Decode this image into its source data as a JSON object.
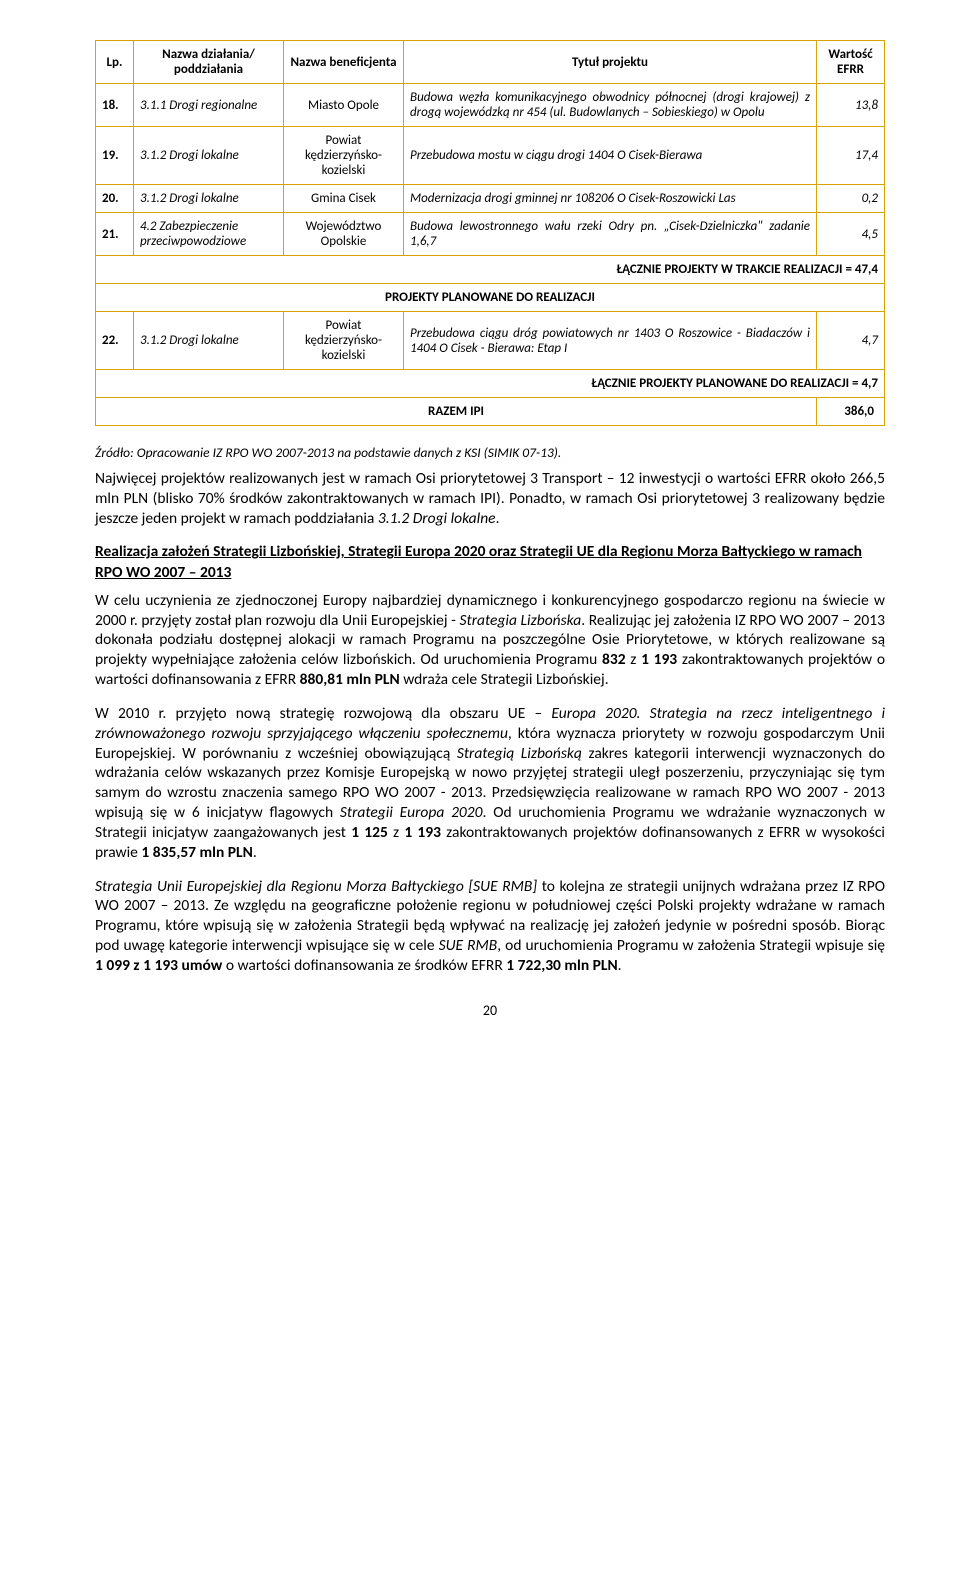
{
  "table": {
    "headers": {
      "lp": "Lp.",
      "dzialanie": "Nazwa działania/ poddziałania",
      "beneficjent": "Nazwa beneficjenta",
      "tytul": "Tytuł projektu",
      "wartosc": "Wartość EFRR"
    },
    "rows": [
      {
        "lp": "18.",
        "dzialanie_prefix": "3.1.1 Drogi regionalne",
        "beneficjent": "Miasto Opole",
        "tytul": "Budowa węzła komunikacyjnego obwodnicy północnej (drogi krajowej) z drogą wojewódzką nr 454 (ul. Budowlanych – Sobieskiego) w Opolu",
        "wartosc": "13,8"
      },
      {
        "lp": "19.",
        "dzialanie_prefix": "3.1.2 Drogi lokalne",
        "beneficjent": "Powiat kędzierzyńsko-kozielski",
        "tytul": "Przebudowa mostu w ciągu drogi 1404 O Cisek-Bierawa",
        "wartosc": "17,4"
      },
      {
        "lp": "20.",
        "dzialanie_prefix": "3.1.2 Drogi lokalne",
        "beneficjent": "Gmina Cisek",
        "tytul": "Modernizacja drogi gminnej nr 108206 O Cisek-Roszowicki Las",
        "wartosc": "0,2"
      },
      {
        "lp": "21.",
        "dzialanie_prefix": "4.2 Zabezpieczenie przeciwpowodziowe",
        "beneficjent": "Województwo Opolskie",
        "tytul": "Budowa lewostronnego wału rzeki Odry pn. „Cisek-Dzielniczka\" zadanie 1,6,7",
        "wartosc": "4,5"
      }
    ],
    "sum_trakcie": "ŁĄCZNIE PROJEKTY W TRAKCIE REALIZACJI = 47,4",
    "section_planowane": "PROJEKTY PLANOWANE DO REALIZACJI",
    "rows2": [
      {
        "lp": "22.",
        "dzialanie_prefix": "3.1.2 Drogi lokalne",
        "beneficjent": "Powiat kędzierzyńsko-kozielski",
        "tytul": "Przebudowa ciągu dróg powiatowych nr 1403 O Roszowice - Biadaczów i 1404 O Cisek - Bierawa: Etap I",
        "wartosc": "4,7"
      }
    ],
    "sum_planowane": "ŁĄCZNIE PROJEKTY PLANOWANE DO REALIZACJI = 4,7",
    "razem_label": "RAZEM IPI",
    "razem_value": "386,0"
  },
  "source": "Źródło: Opracowanie IZ RPO WO 2007-2013 na podstawie danych z KSI (SIMIK 07-13).",
  "para1_a": "Najwięcej projektów realizowanych jest w ramach Osi priorytetowej 3 Transport – 12 inwestycji o wartości EFRR około 266,5 mln PLN (blisko 70% środków zakontraktowanych w ramach IPI). Ponadto, w ramach Osi priorytetowej 3 realizowany będzie jeszcze jeden projekt w ramach poddziałania ",
  "para1_b": "3.1.2 Drogi lokalne",
  "para1_c": ".",
  "heading": "Realizacja założeń Strategii Lizbońskiej, Strategii Europa 2020 oraz Strategii UE dla Regionu Morza Bałtyckiego w ramach RPO WO 2007 – 2013",
  "para2_a": "W celu uczynienia ze zjednoczonej Europy najbardziej dynamicznego i konkurencyjnego gospodarczo regionu na świecie w 2000 r. przyjęty został plan rozwoju dla Unii Europejskiej - ",
  "para2_b": "Strategia Lizbońska",
  "para2_c": ". Realizując jej założenia IZ RPO WO 2007 – 2013 dokonała podziału dostępnej alokacji w ramach Programu na poszczególne Osie Priorytetowe, w których realizowane są projekty wypełniające założenia celów lizbońskich. Od uruchomienia Programu ",
  "para2_d": "832",
  "para2_e": " z ",
  "para2_f": "1 193",
  "para2_g": " zakontraktowanych projektów o wartości dofinansowania z EFRR ",
  "para2_h": "880,81 mln PLN",
  "para2_i": " wdraża cele Strategii Lizbońskiej.",
  "para3_a": "W 2010 r. przyjęto nową strategię rozwojową dla obszaru UE – ",
  "para3_b": "Europa 2020. Strategia na rzecz inteligentnego i zrównoważonego rozwoju sprzyjającego włączeniu społecznemu",
  "para3_c": ", która wyznacza priorytety w rozwoju gospodarczym Unii Europejskiej. W porównaniu z wcześniej obowiązującą ",
  "para3_d": "Strategią Lizbońską",
  "para3_e": " zakres kategorii interwencji wyznaczonych do wdrażania celów wskazanych przez Komisje Europejską w nowo przyjętej strategii uległ poszerzeniu, przyczyniając się tym samym do wzrostu znaczenia samego RPO WO 2007 - 2013. Przedsięwzięcia realizowane w ramach RPO WO 2007 - 2013 wpisują się w 6 inicjatyw flagowych ",
  "para3_f": "Strategii Europa 2020",
  "para3_g": ". Od uruchomienia Programu we wdrażanie wyznaczonych w Strategii inicjatyw zaangażowanych jest ",
  "para3_h": "1 125",
  "para3_i": " z ",
  "para3_j": "1 193",
  "para3_k": " zakontraktowanych projektów dofinansowanych z EFRR w wysokości prawie ",
  "para3_l": "1 835,57 mln PLN",
  "para3_m": ".",
  "para4_a": "Strategia Unii Europejskiej dla Regionu Morza Bałtyckiego [SUE RMB]",
  "para4_b": " to kolejna ze strategii unijnych wdrażana przez IZ RPO WO 2007 – 2013. Ze względu na geograficzne położenie regionu w południowej części Polski projekty wdrażane w ramach Programu, które wpisują się w założenia Strategii będą wpływać na realizację jej założeń jedynie w pośredni sposób. Biorąc pod uwagę kategorie interwencji wpisujące się w cele ",
  "para4_c": "SUE RMB",
  "para4_d": ", od uruchomienia Programu w założenia Strategii wpisuje się ",
  "para4_e": "1 099 z 1 193 umów",
  "para4_f": " o wartości dofinansowania ze środków EFRR ",
  "para4_g": "1 722,30 mln PLN",
  "para4_h": ".",
  "page_num": "20"
}
